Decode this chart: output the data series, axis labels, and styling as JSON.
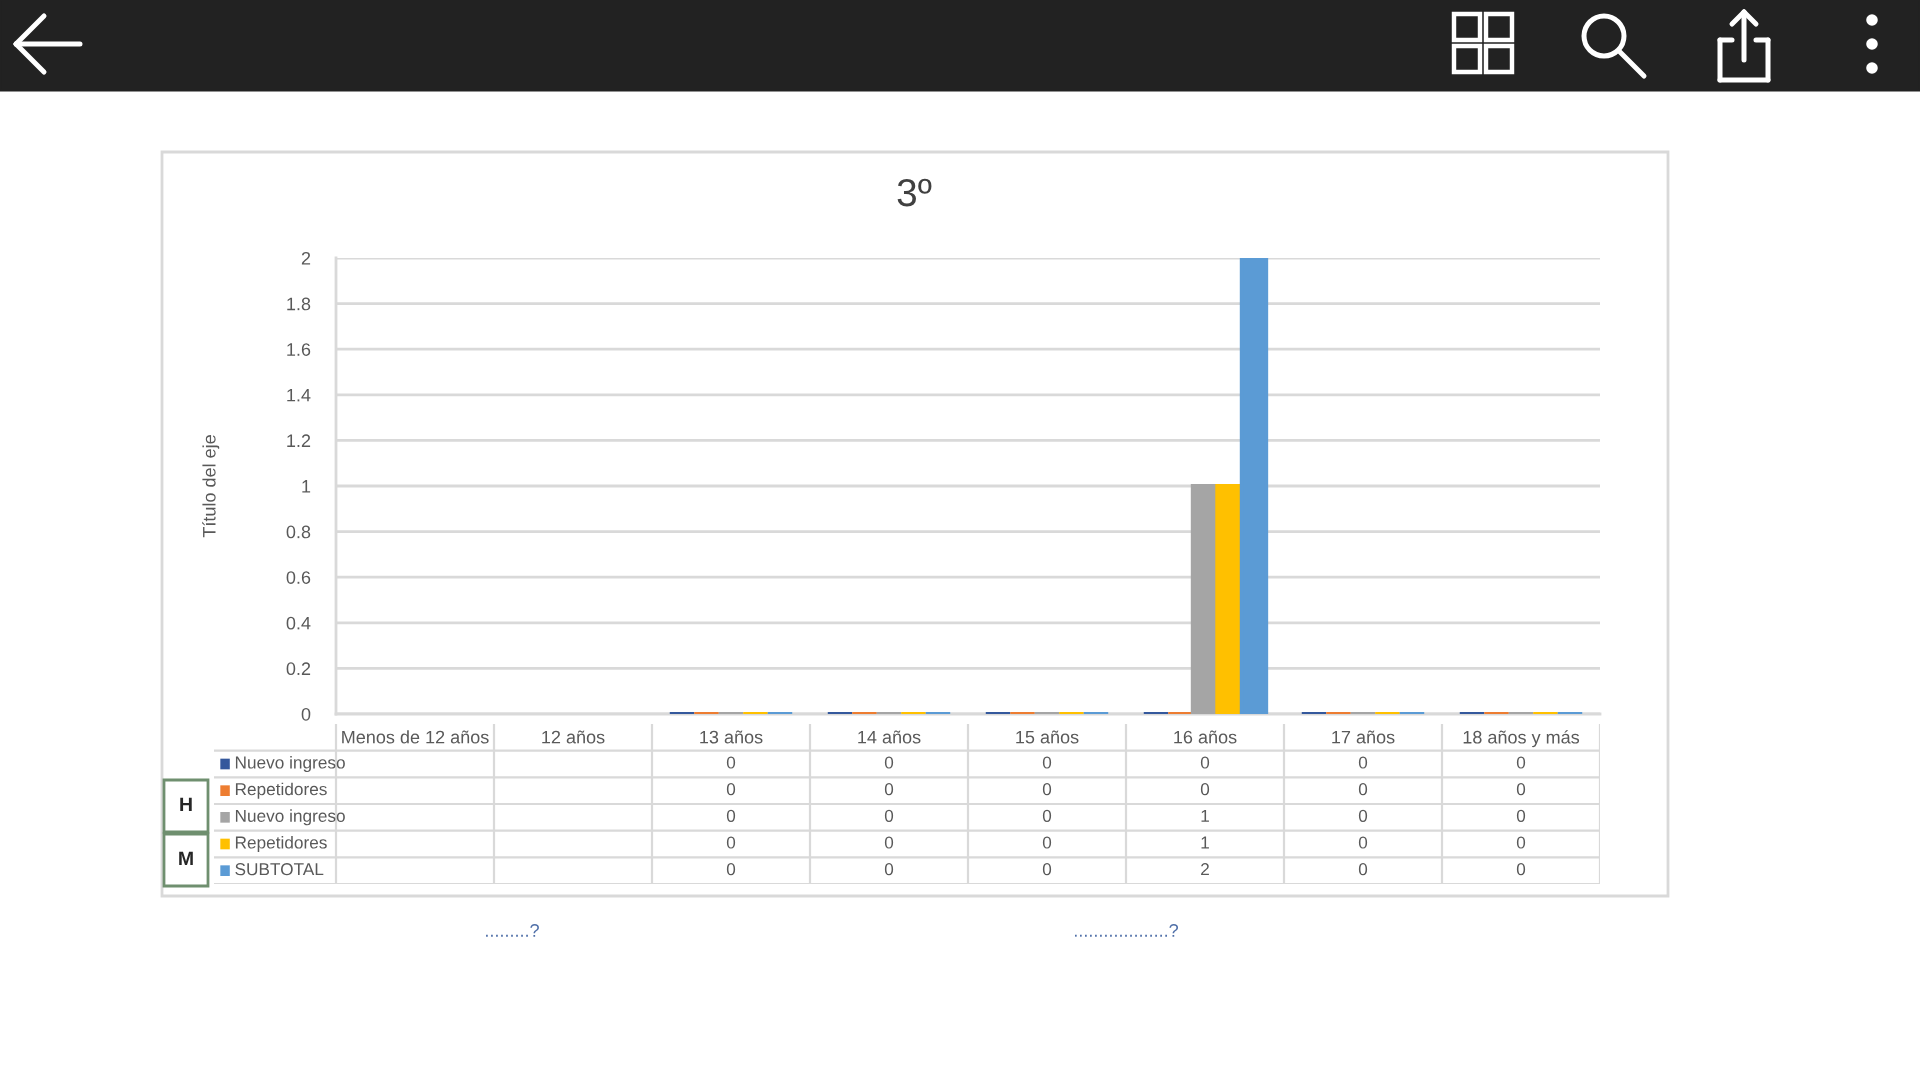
{
  "chart_data": {
    "type": "bar",
    "title": "3º",
    "ylabel": "Título del eje",
    "categories": [
      "Menos de 12 años",
      "12 años",
      "13 años",
      "14 años",
      "15 años",
      "16 años",
      "17 años",
      "18 años y más"
    ],
    "series": [
      {
        "name": "Nuevo ingreso",
        "color": "#34589c",
        "values": [
          null,
          null,
          0,
          0,
          0,
          0,
          0,
          0
        ]
      },
      {
        "name": "Repetidores",
        "color": "#ed7d31",
        "values": [
          null,
          null,
          0,
          0,
          0,
          0,
          0,
          0
        ]
      },
      {
        "name": "Nuevo ingreso",
        "color": "#a5a5a5",
        "values": [
          null,
          null,
          0,
          0,
          0,
          1,
          0,
          0
        ]
      },
      {
        "name": "Repetidores",
        "color": "#ffc000",
        "values": [
          null,
          null,
          0,
          0,
          0,
          1,
          0,
          0
        ]
      },
      {
        "name": "SUBTOTAL",
        "color": "#5b9bd5",
        "values": [
          null,
          null,
          0,
          0,
          0,
          2,
          0,
          0
        ]
      }
    ],
    "ylim": [
      0,
      2
    ],
    "yticks": [
      0,
      0.2,
      0.4,
      0.6,
      0.8,
      1,
      1.2,
      1.4,
      1.6,
      1.8,
      2
    ],
    "grid": "y",
    "legend": "bottom left",
    "data_labels": true,
    "annotations": [
      "H",
      "M",
      ".........?",
      "...................?"
    ]
  }
}
